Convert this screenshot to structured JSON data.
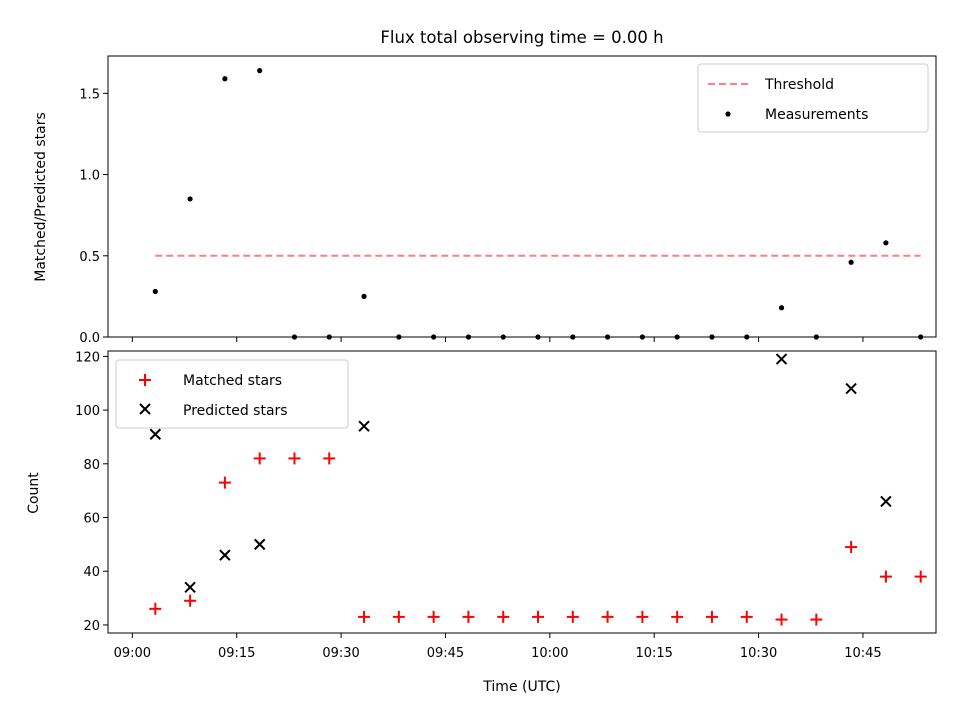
{
  "chart_data": {
    "title": "Flux total observing time = 0.00 h",
    "shared_x": {
      "xlabel": "Time (UTC)",
      "tick_labels": [
        "09:00",
        "09:15",
        "09:30",
        "09:45",
        "10:00",
        "10:15",
        "10:30",
        "10:45"
      ],
      "tick_minutes": [
        540,
        555,
        570,
        585,
        600,
        615,
        630,
        645
      ],
      "xlim_minutes": [
        536.5,
        655.5
      ]
    },
    "panels": [
      {
        "type": "scatter",
        "ylabel": "Matched/Predicted stars",
        "ylim": [
          0,
          1.73
        ],
        "yticks": [
          0.0,
          0.5,
          1.0,
          1.5
        ],
        "ytick_labels": [
          "0.0",
          "0.5",
          "1.0",
          "1.5"
        ],
        "legend_position": "top-right",
        "threshold": {
          "name": "Threshold",
          "value": 0.5,
          "x_range_minutes": [
            543.3,
            653.3
          ],
          "color": "#ff7f7f",
          "style": "dashed"
        },
        "series": [
          {
            "name": "Measurements",
            "marker": "dot",
            "color": "#000000",
            "x_minutes": [
              543.3,
              548.3,
              553.3,
              558.3,
              563.3,
              568.3,
              573.3,
              578.3,
              583.3,
              588.3,
              593.3,
              598.3,
              603.3,
              608.3,
              613.3,
              618.3,
              623.3,
              628.3,
              633.3,
              638.3,
              643.3,
              648.3,
              653.3
            ],
            "y": [
              0.28,
              0.85,
              1.59,
              1.64,
              0.0,
              0.0,
              0.25,
              0.0,
              0.0,
              0.0,
              0.0,
              0.0,
              0.0,
              0.0,
              0.0,
              0.0,
              0.0,
              0.0,
              0.18,
              0.0,
              0.46,
              0.58,
              0.0
            ]
          }
        ]
      },
      {
        "type": "scatter",
        "ylabel": "Count",
        "ylim": [
          17,
          122
        ],
        "yticks": [
          20,
          40,
          60,
          80,
          100,
          120
        ],
        "ytick_labels": [
          "20",
          "40",
          "60",
          "80",
          "100",
          "120"
        ],
        "legend_position": "top-left",
        "series": [
          {
            "name": "Matched stars",
            "marker": "plus",
            "color": "#ff0000",
            "x_minutes": [
              543.3,
              548.3,
              553.3,
              558.3,
              563.3,
              568.3,
              573.3,
              578.3,
              583.3,
              588.3,
              593.3,
              598.3,
              603.3,
              608.3,
              613.3,
              618.3,
              623.3,
              628.3,
              633.3,
              638.3,
              643.3,
              648.3,
              653.3
            ],
            "y": [
              26,
              29,
              73,
              82,
              82,
              82,
              23,
              23,
              23,
              23,
              23,
              23,
              23,
              23,
              23,
              23,
              23,
              23,
              22,
              22,
              49,
              38,
              38
            ]
          },
          {
            "name": "Predicted stars",
            "marker": "x",
            "color": "#000000",
            "x_minutes": [
              543.3,
              548.3,
              553.3,
              558.3,
              573.3,
              633.3,
              643.3,
              648.3
            ],
            "y": [
              91,
              34,
              46,
              50,
              94,
              119,
              108,
              66
            ]
          }
        ]
      }
    ]
  }
}
